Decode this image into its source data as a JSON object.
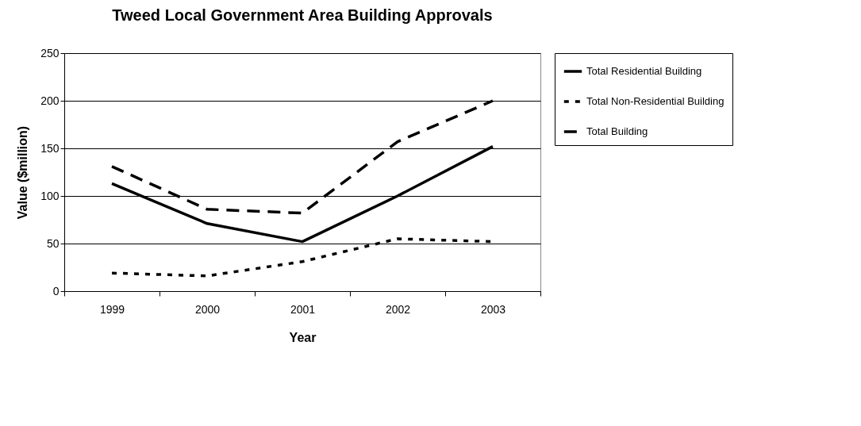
{
  "chart_data": {
    "type": "line",
    "title": "Tweed Local Government Area Building Approvals",
    "xlabel": "Year",
    "ylabel": "Value ($million)",
    "categories": [
      "1999",
      "2000",
      "2001",
      "2002",
      "2003"
    ],
    "series": [
      {
        "name": "Total Residential Building",
        "color": "#000000",
        "line_style": "solid",
        "values": [
          113,
          71,
          52,
          100,
          152
        ]
      },
      {
        "name": "Total Non-Residential Building",
        "color": "#000000",
        "line_style": "dotted",
        "values": [
          19,
          16,
          31,
          55,
          52
        ]
      },
      {
        "name": "Total Building",
        "color": "#000000",
        "line_style": "dashed",
        "values": [
          131,
          86,
          82,
          157,
          200
        ]
      }
    ],
    "ylim": [
      0,
      250
    ],
    "yticks": [
      0,
      50,
      100,
      150,
      200,
      250
    ],
    "grid": "y",
    "legend": "right",
    "marker": "none"
  }
}
